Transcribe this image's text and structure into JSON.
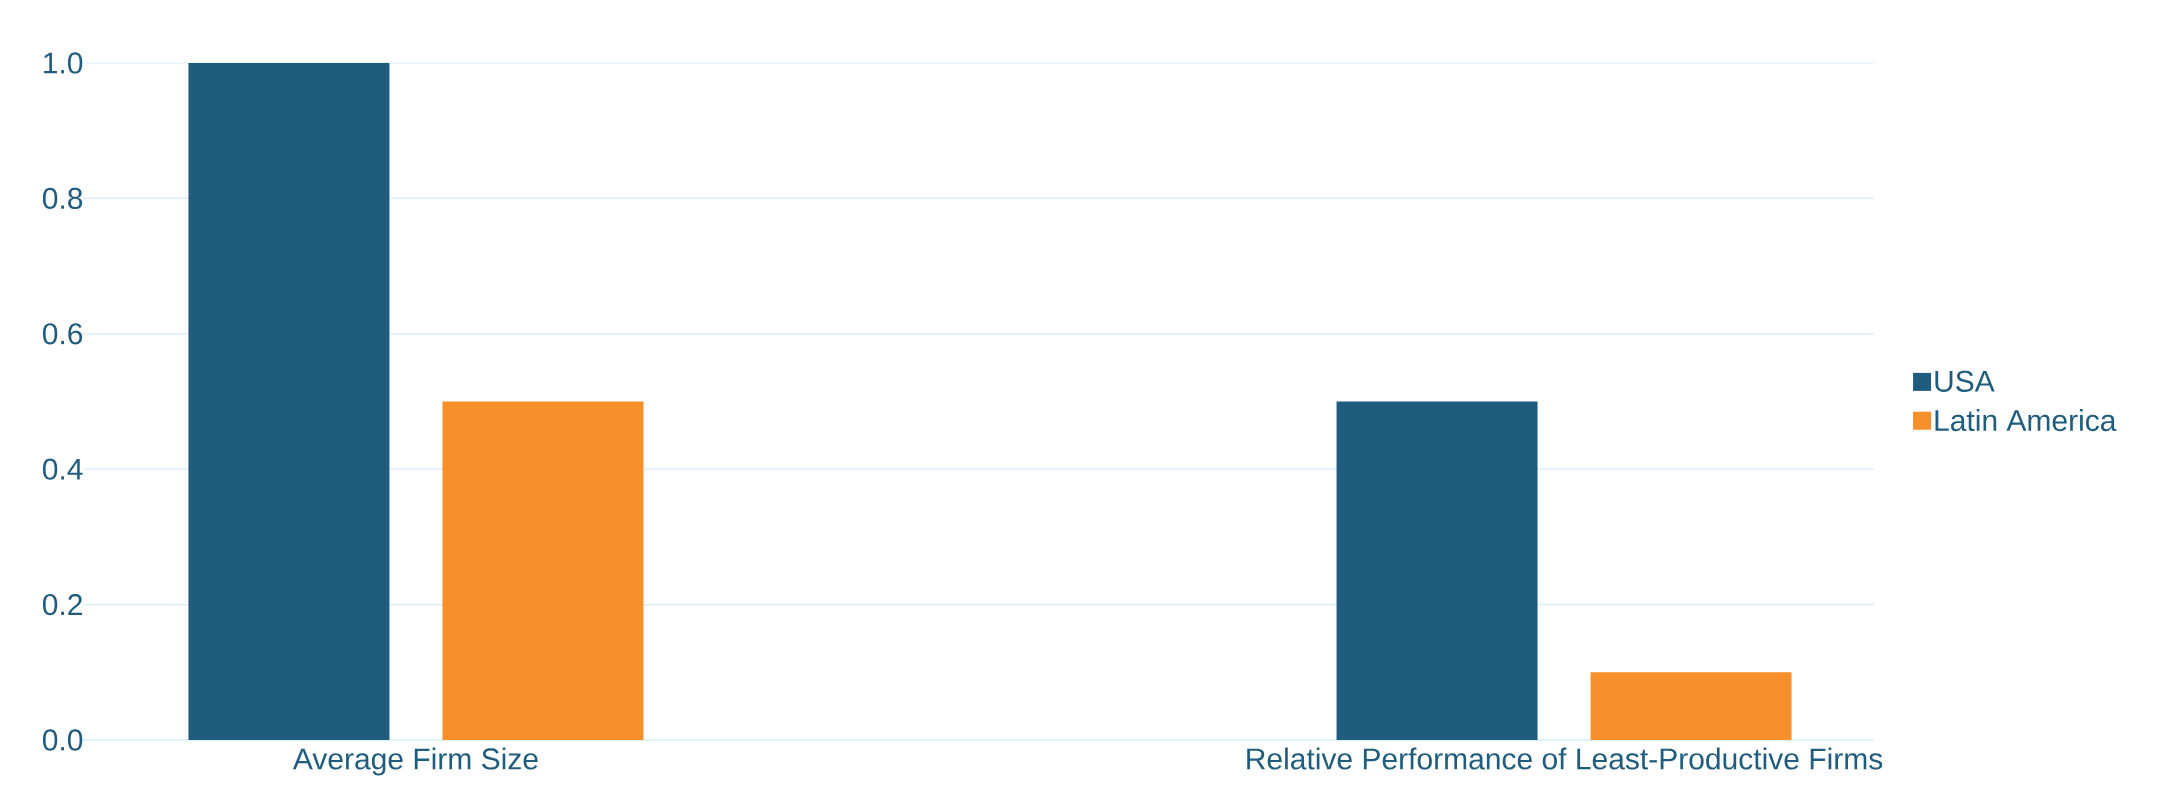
{
  "chart_data": {
    "type": "bar",
    "categories": [
      "Average Firm Size",
      "Relative Performance of Least-Productive Firms"
    ],
    "series": [
      {
        "name": "USA",
        "color": "#1f5c7d",
        "values": [
          1.0,
          0.5
        ]
      },
      {
        "name": "Latin America",
        "color": "#f78f2b",
        "values": [
          0.5,
          0.1
        ]
      }
    ],
    "ylim": [
      0,
      1.0
    ],
    "yticks": [
      {
        "value": 0,
        "label": "0.0"
      },
      {
        "value": 0.2,
        "label": "0.2"
      },
      {
        "value": 0.4,
        "label": "0.4"
      },
      {
        "value": 0.6,
        "label": "0.6"
      },
      {
        "value": 0.8,
        "label": "0.8"
      },
      {
        "value": 1.0,
        "label": "1.0"
      }
    ],
    "grid": "y",
    "legend": "right"
  }
}
